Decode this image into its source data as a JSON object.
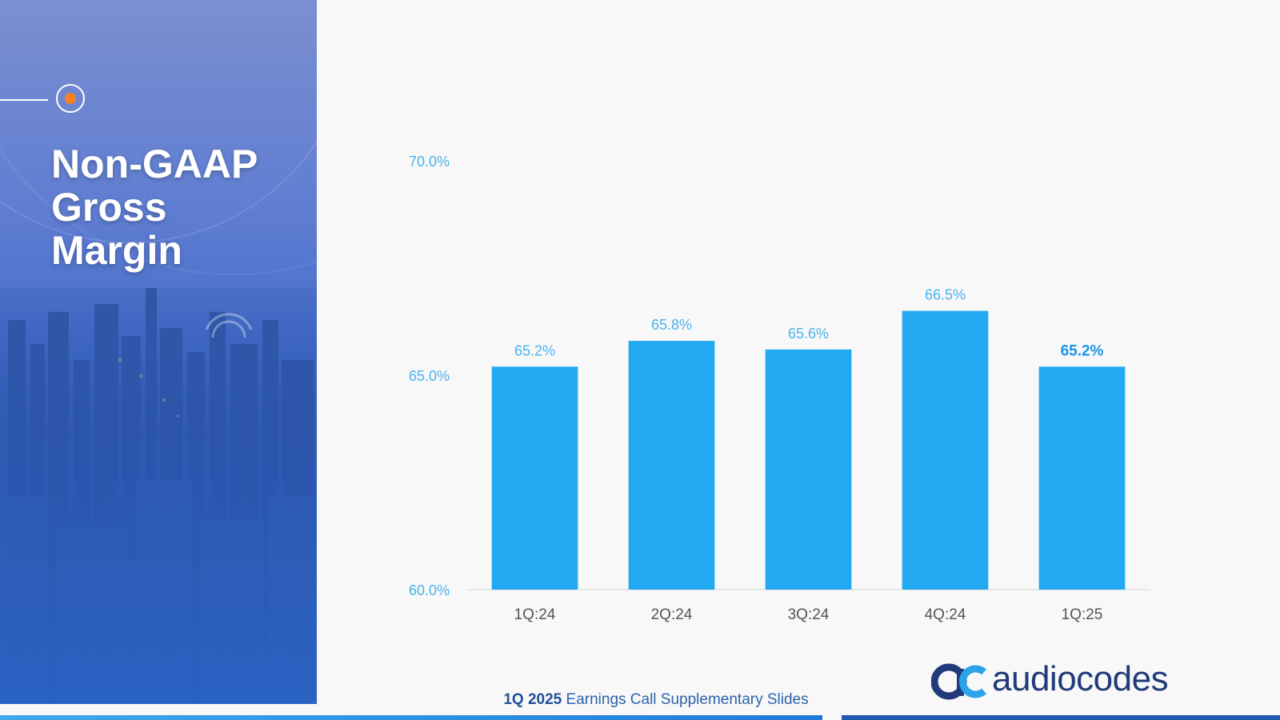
{
  "slide": {
    "title_lines": [
      "Non-GAAP",
      "Gross",
      "Margin"
    ],
    "footer": {
      "bold": "1Q 2025",
      "rest": " Earnings Call Supplementary Slides"
    },
    "logo": {
      "text": "audiocodes"
    }
  },
  "colors": {
    "bar": "#22a9f2",
    "axis_label": "#4ab3ee",
    "value_label": "#4ab3ee",
    "value_label_highlight": "#1a96e6",
    "category_label": "#555555",
    "accent_dot": "#f7811f"
  },
  "chart_data": {
    "type": "bar",
    "categories": [
      "1Q:24",
      "2Q:24",
      "3Q:24",
      "4Q:24",
      "1Q:25"
    ],
    "values": [
      65.2,
      65.8,
      65.6,
      66.5,
      65.2
    ],
    "value_labels": [
      "65.2%",
      "65.8%",
      "65.6%",
      "66.5%",
      "65.2%"
    ],
    "highlight_index": 4,
    "ylim": [
      60,
      70
    ],
    "yticks": [
      60,
      65,
      70
    ],
    "ytick_labels": [
      "60.0%",
      "65.0%",
      "70.0%"
    ],
    "title": "",
    "xlabel": "",
    "ylabel": "",
    "grid": false,
    "legend": "none"
  }
}
